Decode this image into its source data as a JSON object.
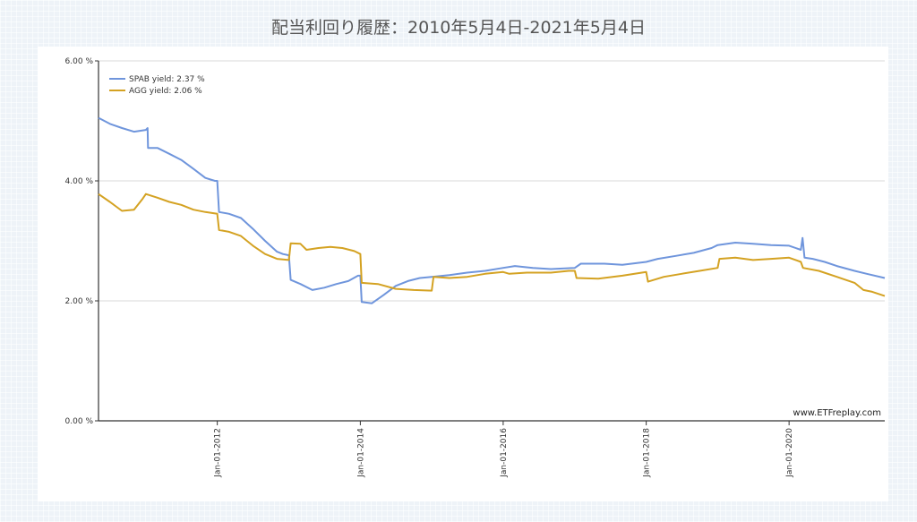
{
  "title": "配当利回り履歴：2010年5月4日-2021年5月4日",
  "chart_data": {
    "type": "line",
    "title": "配当利回り履歴：2010年5月4日-2021年5月4日",
    "xlabel": "",
    "ylabel": "",
    "xlim": [
      "2010-05-04",
      "2021-05-04"
    ],
    "ylim": [
      0,
      6
    ],
    "y_ticks": [
      {
        "value": 0,
        "label": "0.00 %"
      },
      {
        "value": 2,
        "label": "2.00 %"
      },
      {
        "value": 4,
        "label": "4.00 %"
      },
      {
        "value": 6,
        "label": "6.00 %"
      }
    ],
    "x_ticks": [
      {
        "value": "2012-01-01",
        "label": "Jan-01-2012"
      },
      {
        "value": "2014-01-01",
        "label": "Jan-01-2014"
      },
      {
        "value": "2016-01-01",
        "label": "Jan-01-2016"
      },
      {
        "value": "2018-01-01",
        "label": "Jan-01-2018"
      },
      {
        "value": "2020-01-01",
        "label": "Jan-01-2020"
      }
    ],
    "grid": "horizontal",
    "legend_position": "top-left",
    "series": [
      {
        "name": "SPAB yield: 2.37 %",
        "color": "#6f95dc",
        "points": [
          [
            "2010-05-04",
            5.05
          ],
          [
            "2010-07-01",
            4.95
          ],
          [
            "2010-09-01",
            4.88
          ],
          [
            "2010-11-01",
            4.82
          ],
          [
            "2011-01-01",
            4.85
          ],
          [
            "2011-01-10",
            4.88
          ],
          [
            "2011-01-12",
            4.55
          ],
          [
            "2011-03-01",
            4.55
          ],
          [
            "2011-05-01",
            4.45
          ],
          [
            "2011-07-01",
            4.35
          ],
          [
            "2011-09-01",
            4.2
          ],
          [
            "2011-11-01",
            4.05
          ],
          [
            "2011-12-20",
            4.0
          ],
          [
            "2012-01-01",
            4.0
          ],
          [
            "2012-01-10",
            3.48
          ],
          [
            "2012-03-01",
            3.45
          ],
          [
            "2012-05-01",
            3.38
          ],
          [
            "2012-07-01",
            3.2
          ],
          [
            "2012-09-01",
            3.0
          ],
          [
            "2012-11-01",
            2.82
          ],
          [
            "2012-12-01",
            2.78
          ],
          [
            "2013-01-01",
            2.76
          ],
          [
            "2013-01-10",
            2.35
          ],
          [
            "2013-03-01",
            2.28
          ],
          [
            "2013-05-01",
            2.18
          ],
          [
            "2013-07-01",
            2.22
          ],
          [
            "2013-09-01",
            2.28
          ],
          [
            "2013-11-01",
            2.33
          ],
          [
            "2013-12-20",
            2.42
          ],
          [
            "2014-01-01",
            2.42
          ],
          [
            "2014-01-08",
            1.98
          ],
          [
            "2014-03-01",
            1.96
          ],
          [
            "2014-05-01",
            2.1
          ],
          [
            "2014-07-01",
            2.25
          ],
          [
            "2014-09-01",
            2.33
          ],
          [
            "2014-11-01",
            2.38
          ],
          [
            "2015-01-01",
            2.4
          ],
          [
            "2015-04-01",
            2.43
          ],
          [
            "2015-07-01",
            2.47
          ],
          [
            "2015-10-01",
            2.5
          ],
          [
            "2016-01-01",
            2.55
          ],
          [
            "2016-03-01",
            2.58
          ],
          [
            "2016-06-01",
            2.55
          ],
          [
            "2016-09-01",
            2.53
          ],
          [
            "2017-01-01",
            2.55
          ],
          [
            "2017-02-01",
            2.62
          ],
          [
            "2017-06-01",
            2.62
          ],
          [
            "2017-09-01",
            2.6
          ],
          [
            "2018-01-01",
            2.65
          ],
          [
            "2018-03-01",
            2.7
          ],
          [
            "2018-06-01",
            2.75
          ],
          [
            "2018-09-01",
            2.8
          ],
          [
            "2018-12-01",
            2.88
          ],
          [
            "2019-01-01",
            2.93
          ],
          [
            "2019-04-01",
            2.97
          ],
          [
            "2019-07-01",
            2.95
          ],
          [
            "2019-10-01",
            2.93
          ],
          [
            "2020-01-01",
            2.92
          ],
          [
            "2020-03-01",
            2.85
          ],
          [
            "2020-03-10",
            3.05
          ],
          [
            "2020-03-20",
            2.72
          ],
          [
            "2020-05-01",
            2.7
          ],
          [
            "2020-07-01",
            2.65
          ],
          [
            "2020-09-01",
            2.58
          ],
          [
            "2020-12-01",
            2.5
          ],
          [
            "2021-02-01",
            2.45
          ],
          [
            "2021-05-04",
            2.38
          ]
        ]
      },
      {
        "name": "AGG yield: 2.06 %",
        "color": "#d4a222",
        "points": [
          [
            "2010-05-04",
            3.78
          ],
          [
            "2010-07-01",
            3.65
          ],
          [
            "2010-09-01",
            3.5
          ],
          [
            "2010-11-01",
            3.52
          ],
          [
            "2010-12-15",
            3.7
          ],
          [
            "2011-01-01",
            3.78
          ],
          [
            "2011-03-01",
            3.72
          ],
          [
            "2011-05-01",
            3.65
          ],
          [
            "2011-07-01",
            3.6
          ],
          [
            "2011-09-01",
            3.52
          ],
          [
            "2011-11-01",
            3.48
          ],
          [
            "2012-01-01",
            3.45
          ],
          [
            "2012-01-10",
            3.18
          ],
          [
            "2012-03-01",
            3.15
          ],
          [
            "2012-05-01",
            3.08
          ],
          [
            "2012-07-01",
            2.92
          ],
          [
            "2012-09-01",
            2.78
          ],
          [
            "2012-11-01",
            2.7
          ],
          [
            "2013-01-01",
            2.68
          ],
          [
            "2013-01-10",
            2.96
          ],
          [
            "2013-03-01",
            2.95
          ],
          [
            "2013-04-01",
            2.85
          ],
          [
            "2013-06-01",
            2.88
          ],
          [
            "2013-08-01",
            2.9
          ],
          [
            "2013-10-01",
            2.88
          ],
          [
            "2013-12-01",
            2.83
          ],
          [
            "2014-01-01",
            2.78
          ],
          [
            "2014-01-08",
            2.3
          ],
          [
            "2014-04-01",
            2.28
          ],
          [
            "2014-07-01",
            2.2
          ],
          [
            "2014-10-01",
            2.18
          ],
          [
            "2015-01-01",
            2.17
          ],
          [
            "2015-01-10",
            2.4
          ],
          [
            "2015-04-01",
            2.38
          ],
          [
            "2015-07-01",
            2.4
          ],
          [
            "2015-10-01",
            2.45
          ],
          [
            "2016-01-01",
            2.48
          ],
          [
            "2016-02-01",
            2.45
          ],
          [
            "2016-05-01",
            2.47
          ],
          [
            "2016-09-01",
            2.47
          ],
          [
            "2016-12-01",
            2.5
          ],
          [
            "2017-01-01",
            2.5
          ],
          [
            "2017-01-10",
            2.38
          ],
          [
            "2017-05-01",
            2.37
          ],
          [
            "2017-09-01",
            2.42
          ],
          [
            "2018-01-01",
            2.48
          ],
          [
            "2018-01-10",
            2.32
          ],
          [
            "2018-04-01",
            2.4
          ],
          [
            "2018-07-01",
            2.45
          ],
          [
            "2018-10-01",
            2.5
          ],
          [
            "2019-01-01",
            2.55
          ],
          [
            "2019-01-10",
            2.7
          ],
          [
            "2019-04-01",
            2.72
          ],
          [
            "2019-07-01",
            2.68
          ],
          [
            "2019-10-01",
            2.7
          ],
          [
            "2020-01-01",
            2.72
          ],
          [
            "2020-03-01",
            2.65
          ],
          [
            "2020-03-12",
            2.55
          ],
          [
            "2020-06-01",
            2.5
          ],
          [
            "2020-09-01",
            2.4
          ],
          [
            "2020-12-01",
            2.3
          ],
          [
            "2021-01-15",
            2.18
          ],
          [
            "2021-03-01",
            2.15
          ],
          [
            "2021-05-04",
            2.08
          ]
        ]
      }
    ]
  },
  "watermark": "www.ETFreplay.com"
}
